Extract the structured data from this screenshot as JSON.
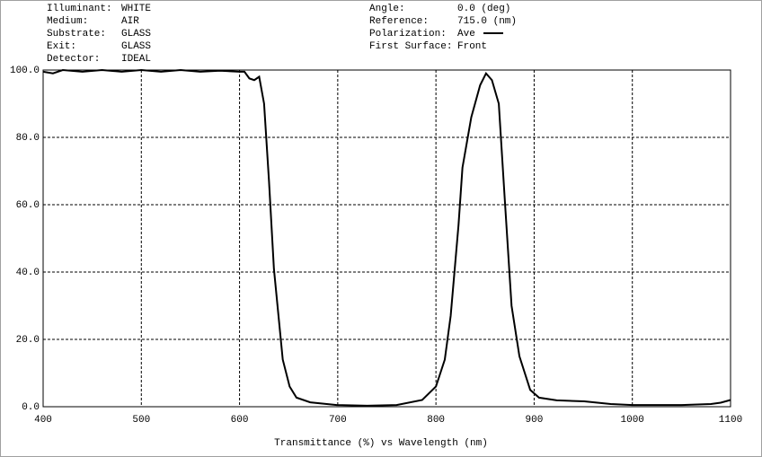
{
  "chart_data": {
    "type": "line",
    "info_left": [
      {
        "label": "Illuminant:",
        "value": "WHITE"
      },
      {
        "label": "Medium:",
        "value": "AIR"
      },
      {
        "label": "Substrate:",
        "value": "GLASS"
      },
      {
        "label": "Exit:",
        "value": "GLASS"
      },
      {
        "label": "Detector:",
        "value": "IDEAL"
      }
    ],
    "info_right": [
      {
        "label": "Angle:",
        "value": "0.0 (deg)"
      },
      {
        "label": "Reference:",
        "value": "715.0 (nm)"
      },
      {
        "label": "Polarization:",
        "value": "Ave"
      },
      {
        "label": "First Surface:",
        "value": "Front"
      }
    ],
    "x_label": "Transmittance (%)  vs  Wavelength (nm)",
    "x": [
      400,
      410,
      420,
      440,
      460,
      480,
      500,
      520,
      540,
      560,
      580,
      600,
      605,
      610,
      615,
      620,
      625,
      630,
      635,
      640,
      644,
      651,
      658,
      672,
      699,
      730,
      760,
      786,
      800,
      809,
      815,
      823,
      827,
      836,
      845,
      851,
      857,
      864,
      870,
      877,
      885,
      896,
      905,
      923,
      951,
      978,
      1000,
      1050,
      1080,
      1090,
      1100
    ],
    "values": [
      99.5,
      99,
      100,
      99.5,
      100,
      99.5,
      100,
      99.5,
      100,
      99.5,
      99.8,
      99.5,
      99.5,
      97.5,
      97,
      98,
      90,
      67,
      41,
      26,
      14,
      6,
      2.7,
      1.3,
      0.5,
      0.3,
      0.5,
      2,
      6,
      14,
      27,
      54,
      71,
      86,
      95.5,
      99,
      97,
      90,
      62,
      30,
      15,
      5,
      2.7,
      1.9,
      1.6,
      0.8,
      0.5,
      0.5,
      0.8,
      1.2,
      2
    ],
    "color": "#000000",
    "xlim": [
      400,
      1100
    ],
    "ylim": [
      0,
      100
    ],
    "xticks": [
      400,
      500,
      600,
      700,
      800,
      900,
      1000,
      1100
    ],
    "yticks": [
      {
        "value": 0,
        "label": "0.0"
      },
      {
        "value": 20,
        "label": "20.0"
      },
      {
        "value": 40,
        "label": "40.0"
      },
      {
        "value": 60,
        "label": "60.0"
      },
      {
        "value": 80,
        "label": "80.0"
      },
      {
        "value": 100,
        "label": "100.0"
      }
    ],
    "grid": true
  }
}
